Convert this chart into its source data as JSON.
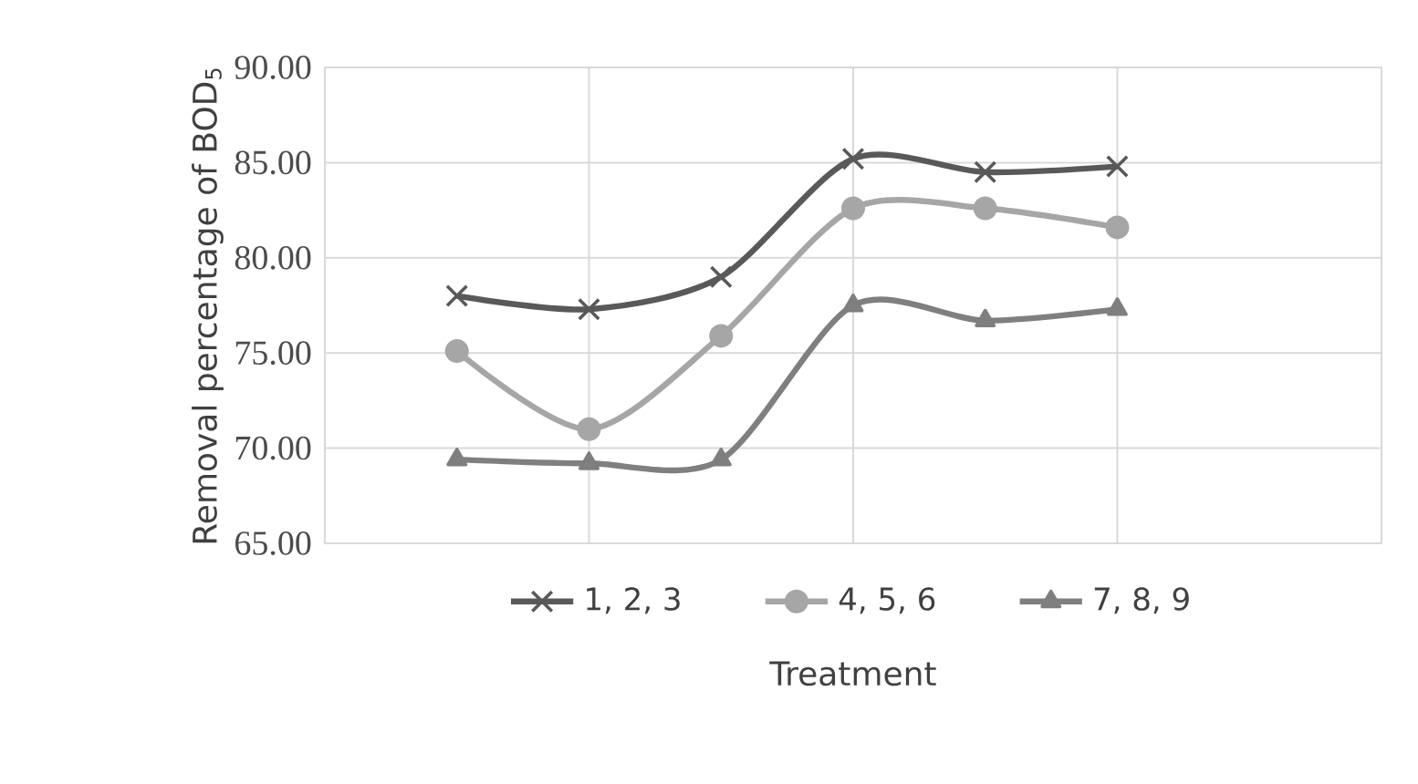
{
  "chart_data": {
    "type": "line",
    "xlabel": "Treatment",
    "ylabel": "Removal percentage of BOD$_{5}$",
    "categories": [
      null,
      null,
      null,
      null,
      null,
      null
    ],
    "series": [
      {
        "name": "1, 2, 3",
        "color": "#595959",
        "marker": "cross",
        "values": [
          78.0,
          77.3,
          79.0,
          85.2,
          84.5,
          84.8
        ]
      },
      {
        "name": "4, 5, 6",
        "color": "#a6a6a6",
        "marker": "circle",
        "values": [
          75.1,
          71.0,
          75.9,
          82.6,
          82.6,
          81.6
        ]
      },
      {
        "name": "7, 8, 9",
        "color": "#7f7f7f",
        "marker": "triangle",
        "values": [
          69.4,
          69.2,
          69.4,
          77.5,
          76.7,
          77.3
        ]
      }
    ],
    "ylim": [
      65,
      90
    ],
    "yticks": [
      {
        "value": 65,
        "label": "65.00"
      },
      {
        "value": 70,
        "label": "70.00"
      },
      {
        "value": 75,
        "label": "75.00"
      },
      {
        "value": 80,
        "label": "80.00"
      },
      {
        "value": 85,
        "label": "85.00"
      },
      {
        "value": 90,
        "label": "90.00"
      }
    ],
    "grid": true,
    "legend": "bottom",
    "line_style": "solid"
  }
}
